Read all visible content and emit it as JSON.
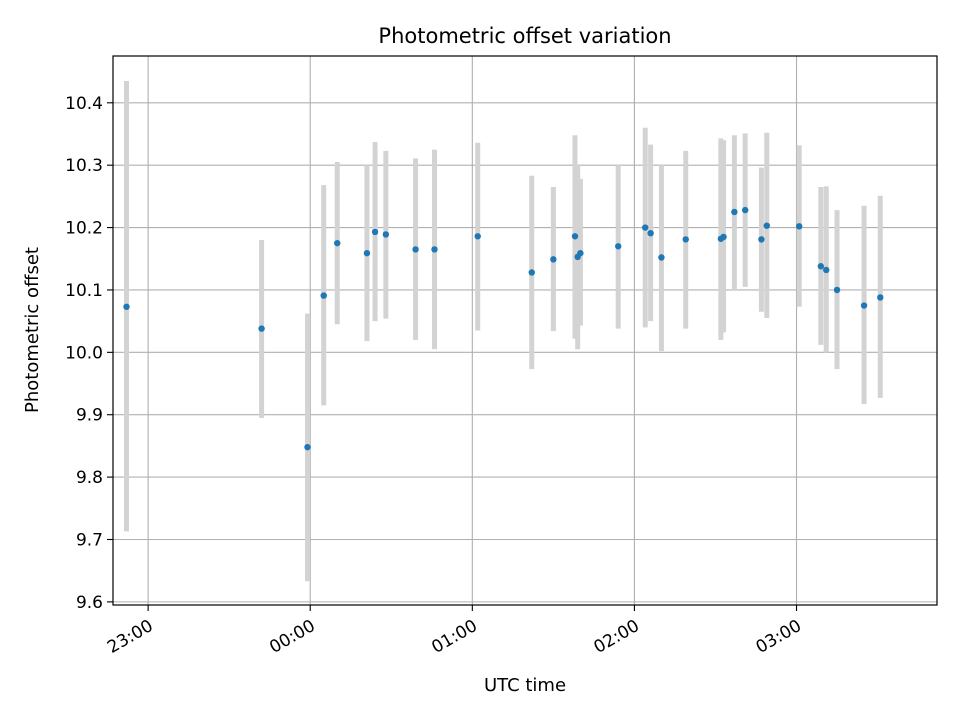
{
  "chart_data": {
    "type": "scatter",
    "title": "Photometric offset variation",
    "xlabel": "UTC time",
    "ylabel": "Photometric offset",
    "xlim": [
      "22:47",
      "03:52"
    ],
    "ylim": [
      9.595,
      10.475
    ],
    "x_ticks": [
      "23:00",
      "00:00",
      "01:00",
      "02:00",
      "03:00"
    ],
    "y_ticks": [
      9.6,
      9.7,
      9.8,
      9.9,
      10.0,
      10.1,
      10.2,
      10.3,
      10.4
    ],
    "grid": true,
    "legend": "none",
    "colors": {
      "point": "#1f77b4",
      "errorbar": "#d3d3d3",
      "grid": "#b0b0b0"
    },
    "points": [
      {
        "x": "22:52",
        "y": 10.073,
        "low": 9.713,
        "high": 10.435
      },
      {
        "x": "23:42",
        "y": 10.038,
        "low": 9.895,
        "high": 10.18
      },
      {
        "x": "23:59",
        "y": 9.848,
        "low": 9.633,
        "high": 10.062
      },
      {
        "x": "00:05",
        "y": 10.091,
        "low": 9.915,
        "high": 10.268
      },
      {
        "x": "00:10",
        "y": 10.175,
        "low": 10.045,
        "high": 10.305
      },
      {
        "x": "00:21",
        "y": 10.159,
        "low": 10.018,
        "high": 10.3
      },
      {
        "x": "00:24",
        "y": 10.193,
        "low": 10.05,
        "high": 10.337
      },
      {
        "x": "00:28",
        "y": 10.189,
        "low": 10.054,
        "high": 10.323
      },
      {
        "x": "00:39",
        "y": 10.165,
        "low": 10.02,
        "high": 10.311
      },
      {
        "x": "00:46",
        "y": 10.165,
        "low": 10.005,
        "high": 10.325
      },
      {
        "x": "01:02",
        "y": 10.186,
        "low": 10.035,
        "high": 10.336
      },
      {
        "x": "01:22",
        "y": 10.128,
        "low": 9.973,
        "high": 10.283
      },
      {
        "x": "01:30",
        "y": 10.149,
        "low": 10.034,
        "high": 10.265
      },
      {
        "x": "01:38",
        "y": 10.186,
        "low": 10.022,
        "high": 10.348
      },
      {
        "x": "01:39",
        "y": 10.153,
        "low": 10.005,
        "high": 10.3
      },
      {
        "x": "01:40",
        "y": 10.159,
        "low": 10.043,
        "high": 10.278
      },
      {
        "x": "01:54",
        "y": 10.17,
        "low": 10.038,
        "high": 10.3
      },
      {
        "x": "02:04",
        "y": 10.2,
        "low": 10.04,
        "high": 10.36
      },
      {
        "x": "02:06",
        "y": 10.191,
        "low": 10.05,
        "high": 10.333
      },
      {
        "x": "02:10",
        "y": 10.152,
        "low": 10.002,
        "high": 10.3
      },
      {
        "x": "02:19",
        "y": 10.181,
        "low": 10.038,
        "high": 10.323
      },
      {
        "x": "02:32",
        "y": 10.182,
        "low": 10.02,
        "high": 10.343
      },
      {
        "x": "02:33",
        "y": 10.185,
        "low": 10.032,
        "high": 10.34
      },
      {
        "x": "02:37",
        "y": 10.225,
        "low": 10.1,
        "high": 10.348
      },
      {
        "x": "02:41",
        "y": 10.228,
        "low": 10.105,
        "high": 10.351
      },
      {
        "x": "02:47",
        "y": 10.181,
        "low": 10.065,
        "high": 10.296
      },
      {
        "x": "02:49",
        "y": 10.203,
        "low": 10.055,
        "high": 10.352
      },
      {
        "x": "03:01",
        "y": 10.202,
        "low": 10.073,
        "high": 10.332
      },
      {
        "x": "03:09",
        "y": 10.138,
        "low": 10.012,
        "high": 10.265
      },
      {
        "x": "03:11",
        "y": 10.132,
        "low": 10.0,
        "high": 10.266
      },
      {
        "x": "03:15",
        "y": 10.1,
        "low": 9.973,
        "high": 10.228
      },
      {
        "x": "03:25",
        "y": 10.075,
        "low": 9.917,
        "high": 10.235
      },
      {
        "x": "03:31",
        "y": 10.088,
        "low": 9.927,
        "high": 10.251
      }
    ]
  }
}
